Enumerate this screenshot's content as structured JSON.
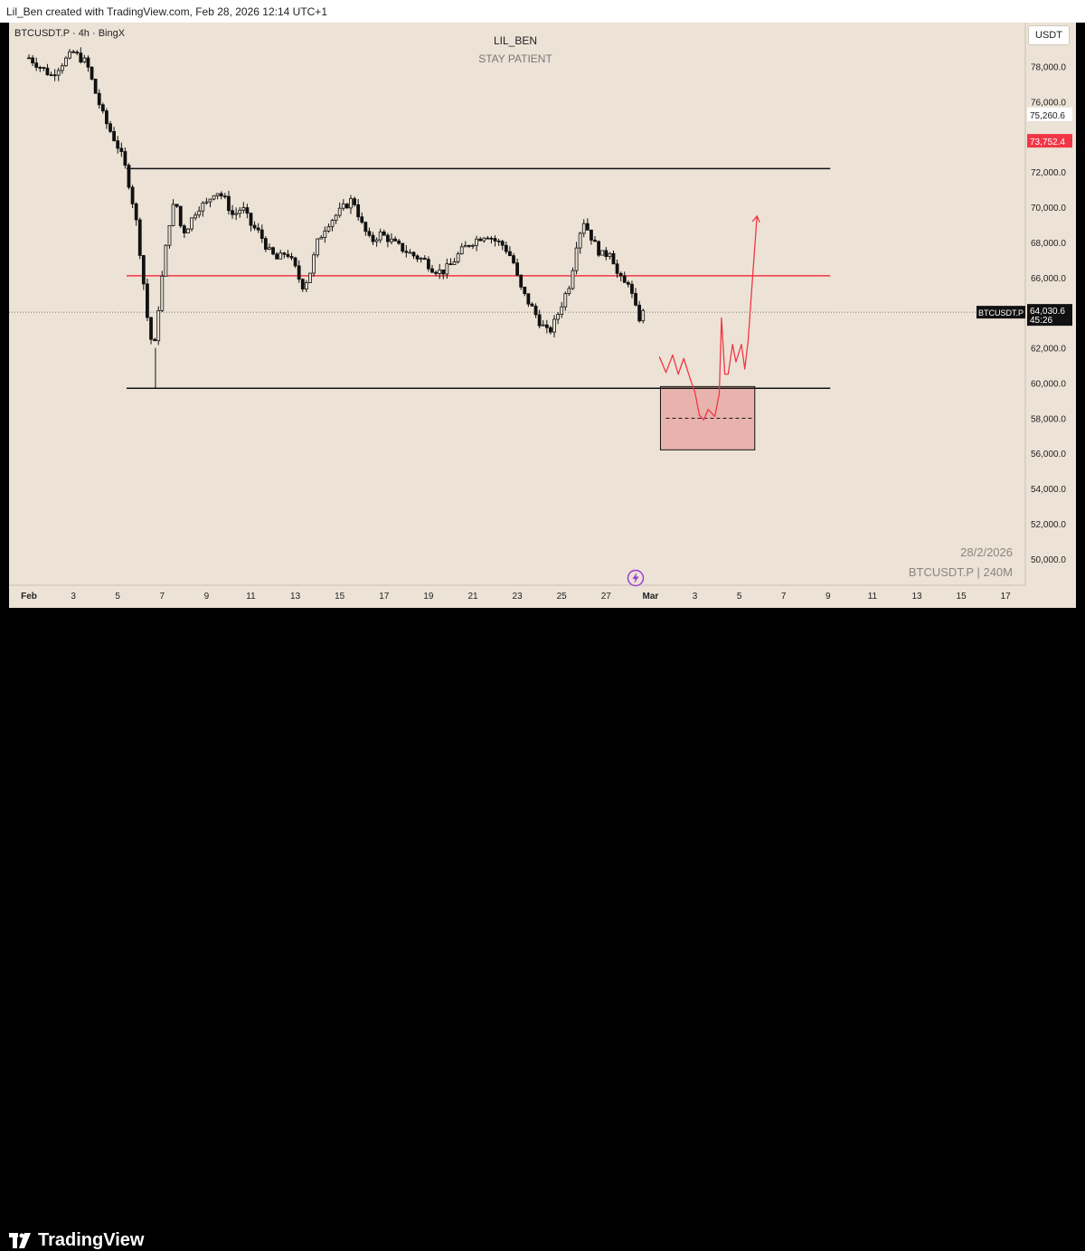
{
  "header": {
    "text": "Lil_Ben created with TradingView.com, Feb 28, 2026 12:14 UTC+1"
  },
  "chart_meta": {
    "symbol_label": "BTCUSDT.P · 4h · BingX",
    "currency": "USDT",
    "watermark_date": "28/2/2026",
    "watermark_symbol": "BTCUSDT.P | 240M",
    "brand": "TradingView",
    "accent_red": "#f23645",
    "candle_color": "#111111",
    "background": "#ece3d6"
  },
  "chart_data": {
    "type": "candlestick",
    "title": "LIL_BEN",
    "subtitle": "STAY PATIENT",
    "ylim": [
      48500,
      80500
    ],
    "y_ticks": [
      50000,
      52000,
      54000,
      56000,
      58000,
      60000,
      62000,
      64000,
      66000,
      68000,
      70000,
      72000,
      74000,
      76000,
      78000
    ],
    "y_tick_labels": [
      "50,000.0",
      "52,000.0",
      "54,000.0",
      "56,000.0",
      "58,000.0",
      "60,000.0",
      "62,000.0",
      "64,000.0",
      "66,000.0",
      "68,000.0",
      "70,000.0",
      "72,000.0",
      "74,000.0",
      "76,000.0",
      "78,000.0"
    ],
    "x_ticks": [
      {
        "day": 0,
        "label": "Feb",
        "bold": true
      },
      {
        "day": 2,
        "label": "3"
      },
      {
        "day": 4,
        "label": "5"
      },
      {
        "day": 6,
        "label": "7"
      },
      {
        "day": 8,
        "label": "9"
      },
      {
        "day": 10,
        "label": "11"
      },
      {
        "day": 12,
        "label": "13"
      },
      {
        "day": 14,
        "label": "15"
      },
      {
        "day": 16,
        "label": "17"
      },
      {
        "day": 18,
        "label": "19"
      },
      {
        "day": 20,
        "label": "21"
      },
      {
        "day": 22,
        "label": "23"
      },
      {
        "day": 24,
        "label": "25"
      },
      {
        "day": 26,
        "label": "27"
      },
      {
        "day": 28,
        "label": "Mar",
        "bold": true
      },
      {
        "day": 30,
        "label": "3"
      },
      {
        "day": 32,
        "label": "5"
      },
      {
        "day": 34,
        "label": "7"
      },
      {
        "day": 36,
        "label": "9"
      },
      {
        "day": 38,
        "label": "11"
      },
      {
        "day": 40,
        "label": "13"
      },
      {
        "day": 42,
        "label": "15"
      },
      {
        "day": 44,
        "label": "17"
      }
    ],
    "x_axis": "days since Feb 1, 2026 (4h candles, 6 per day)",
    "close_path": [
      [
        0,
        78500
      ],
      [
        0.5,
        78000
      ],
      [
        1,
        77500
      ],
      [
        1.5,
        78200
      ],
      [
        2,
        78800
      ],
      [
        2.6,
        78200
      ],
      [
        3,
        76500
      ],
      [
        3.4,
        75000
      ],
      [
        3.8,
        74000
      ],
      [
        4.1,
        73200
      ],
      [
        4.4,
        72000
      ],
      [
        4.8,
        69500
      ],
      [
        5.1,
        66500
      ],
      [
        5.3,
        64000
      ],
      [
        5.5,
        62500
      ],
      [
        5.65,
        62000
      ],
      [
        5.85,
        64500
      ],
      [
        6.05,
        66500
      ],
      [
        6.3,
        69000
      ],
      [
        6.6,
        70500
      ],
      [
        6.9,
        68500
      ],
      [
        7.2,
        69000
      ],
      [
        7.6,
        70000
      ],
      [
        8.0,
        70200
      ],
      [
        8.4,
        71000
      ],
      [
        8.8,
        70500
      ],
      [
        9.2,
        69500
      ],
      [
        9.6,
        70000
      ],
      [
        10.0,
        69000
      ],
      [
        10.4,
        68500
      ],
      [
        10.8,
        67500
      ],
      [
        11.2,
        67000
      ],
      [
        11.6,
        67500
      ],
      [
        12.0,
        66500
      ],
      [
        12.3,
        65500
      ],
      [
        12.6,
        66000
      ],
      [
        13.0,
        68000
      ],
      [
        13.4,
        69000
      ],
      [
        13.8,
        69500
      ],
      [
        14.2,
        70000
      ],
      [
        14.6,
        70500
      ],
      [
        15.0,
        69000
      ],
      [
        15.4,
        68000
      ],
      [
        15.8,
        68500
      ],
      [
        16.2,
        68200
      ],
      [
        16.6,
        67800
      ],
      [
        17.0,
        67500
      ],
      [
        17.4,
        67200
      ],
      [
        17.8,
        67000
      ],
      [
        18.2,
        66500
      ],
      [
        18.6,
        66300
      ],
      [
        19.0,
        66700
      ],
      [
        19.4,
        67400
      ],
      [
        19.8,
        67900
      ],
      [
        20.2,
        68200
      ],
      [
        20.6,
        68500
      ],
      [
        21.0,
        68100
      ],
      [
        21.4,
        67800
      ],
      [
        21.8,
        67000
      ],
      [
        22.1,
        65500
      ],
      [
        22.4,
        64800
      ],
      [
        22.7,
        64200
      ],
      [
        23.0,
        63500
      ],
      [
        23.4,
        62800
      ],
      [
        23.7,
        63500
      ],
      [
        24.0,
        64500
      ],
      [
        24.4,
        65800
      ],
      [
        24.7,
        68200
      ],
      [
        25.0,
        69200
      ],
      [
        25.3,
        68400
      ],
      [
        25.6,
        67600
      ],
      [
        25.9,
        67200
      ],
      [
        26.2,
        67600
      ],
      [
        26.5,
        66200
      ],
      [
        26.8,
        65600
      ],
      [
        27.0,
        65800
      ],
      [
        27.3,
        64300
      ],
      [
        27.5,
        63700
      ],
      [
        27.7,
        64030.6
      ]
    ],
    "horizontal_lines": [
      {
        "name": "resistance",
        "price": 72200,
        "x_start": 4.4,
        "x_end": 36.1,
        "color": "#111111"
      },
      {
        "name": "mid",
        "price": 66100,
        "x_start": 4.4,
        "x_end": 36.1,
        "color": "#f23645"
      },
      {
        "name": "support",
        "price": 59700,
        "x_start": 4.4,
        "x_end": 36.1,
        "color": "#111111"
      }
    ],
    "demand_zone": {
      "x_start": 28.45,
      "x_end": 32.7,
      "price_top": 59800,
      "price_bottom": 56200,
      "midline_price": 58000
    },
    "projection_path": [
      [
        28.4,
        61500
      ],
      [
        28.7,
        60600
      ],
      [
        29.0,
        61600
      ],
      [
        29.25,
        60500
      ],
      [
        29.5,
        61400
      ],
      [
        29.8,
        60200
      ],
      [
        30.0,
        59500
      ],
      [
        30.2,
        58200
      ],
      [
        30.4,
        57900
      ],
      [
        30.6,
        58500
      ],
      [
        30.9,
        58100
      ],
      [
        31.1,
        59400
      ],
      [
        31.2,
        63700
      ],
      [
        31.35,
        60500
      ],
      [
        31.5,
        60500
      ],
      [
        31.7,
        62200
      ],
      [
        31.85,
        61200
      ],
      [
        32.1,
        62200
      ],
      [
        32.25,
        60800
      ],
      [
        32.4,
        62400
      ],
      [
        32.6,
        66000
      ],
      [
        32.8,
        69500
      ]
    ],
    "price_labels": [
      {
        "price": 75260.6,
        "label": "75,260.6",
        "style": "plain"
      },
      {
        "price": 73752.4,
        "label": "73,752.4",
        "style": "red"
      },
      {
        "price": 64030.6,
        "label": "64,030.6",
        "sub": "45:26",
        "style": "dark",
        "tag": "BTCUSDT.P"
      }
    ],
    "current_price": 64030.6
  }
}
